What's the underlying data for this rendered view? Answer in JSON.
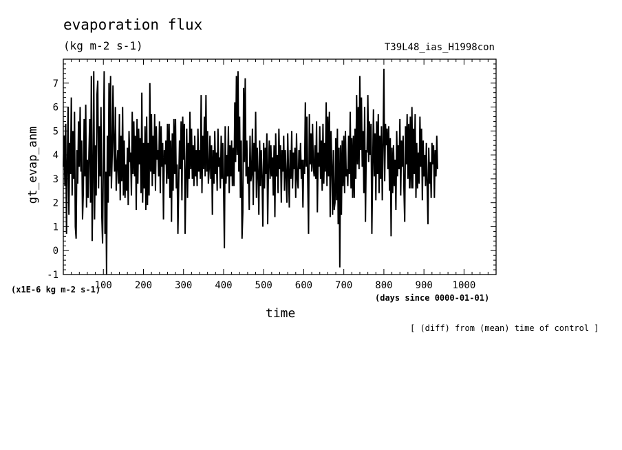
{
  "page": {
    "subtitle": "(kg m-2 s-1)",
    "run_label": "T39L48_ias_H1998con",
    "scale_note": "(x1E-6 kg m-2 s-1)",
    "x_units": "(days since 0000-01-01)",
    "footnote": "[ (diff) from (mean) time of control ]"
  },
  "chart_data": {
    "type": "line",
    "title": "evaporation flux",
    "xlabel": "time",
    "ylabel": "gt_evap_anm",
    "xlim": [
      0,
      1080
    ],
    "ylim": [
      -1,
      8
    ],
    "x_ticks": [
      100,
      200,
      300,
      400,
      500,
      600,
      700,
      800,
      900,
      1000
    ],
    "y_ticks": [
      -1,
      0,
      1,
      2,
      3,
      4,
      5,
      6,
      7
    ],
    "grid": false,
    "line_color": "#000000",
    "x_start": 0,
    "x_step": 2,
    "series": [
      {
        "values": [
          3.5,
          4.8,
          2.7,
          5.3,
          0.7,
          3.6,
          6.0,
          1.5,
          4.5,
          3.2,
          6.4,
          2.3,
          5.0,
          3.0,
          5.8,
          1.0,
          0.5,
          4.2,
          2.8,
          5.4,
          3.5,
          6.0,
          3.3,
          4.6,
          1.3,
          2.5,
          5.5,
          3.1,
          6.1,
          1.8,
          3.8,
          2.2,
          4.1,
          5.5,
          2.0,
          7.3,
          0.4,
          3.1,
          7.5,
          1.3,
          4.4,
          2.3,
          6.5,
          7.1,
          2.6,
          5.2,
          3.1,
          6.0,
          1.5,
          0.3,
          4.0,
          7.5,
          0.7,
          3.3,
          -1.0,
          4.8,
          2.0,
          7.0,
          3.1,
          7.3,
          2.6,
          4.0,
          6.9,
          4.5,
          3.3,
          6.0,
          2.5,
          3.5,
          4.2,
          2.8,
          5.7,
          2.1,
          4.8,
          2.9,
          6.0,
          2.3,
          4.6,
          2.2,
          3.6,
          2.5,
          4.3,
          1.9,
          5.0,
          3.7,
          4.1,
          2.3,
          5.8,
          3.2,
          5.4,
          3.1,
          4.8,
          1.7,
          5.5,
          2.8,
          5.1,
          3.6,
          4.7,
          2.4,
          6.6,
          2.0,
          4.5,
          2.6,
          5.2,
          1.7,
          5.6,
          1.9,
          4.5,
          2.3,
          7.0,
          3.3,
          5.7,
          2.7,
          4.8,
          3.2,
          5.7,
          2.5,
          5.2,
          3.8,
          4.2,
          3.1,
          5.4,
          2.4,
          5.2,
          3.5,
          4.5,
          1.3,
          4.2,
          3.6,
          4.6,
          2.8,
          5.3,
          3.0,
          5.3,
          2.2,
          4.6,
          1.2,
          4.9,
          2.5,
          5.5,
          3.2,
          5.5,
          2.6,
          3.6,
          0.7,
          2.8,
          4.6,
          3.4,
          5.4,
          2.1,
          5.6,
          3.8,
          5.3,
          0.7,
          3.1,
          5.1,
          2.2,
          4.5,
          3.0,
          5.8,
          3.4,
          5.1,
          3.0,
          4.4,
          2.7,
          4.8,
          3.1,
          4.2,
          2.7,
          5.1,
          3.3,
          4.2,
          3.0,
          6.5,
          2.4,
          4.8,
          3.4,
          5.6,
          3.1,
          6.5,
          3.3,
          5.0,
          2.8,
          3.4,
          4.8,
          3.0,
          4.4,
          1.5,
          4.2,
          2.8,
          5.0,
          3.2,
          4.1,
          2.5,
          5.1,
          3.5,
          3.9,
          2.6,
          4.8,
          3.0,
          4.5,
          2.7,
          0.1,
          5.2,
          2.8,
          4.0,
          3.1,
          5.2,
          2.4,
          4.4,
          3.1,
          4.6,
          2.7,
          4.3,
          2.7,
          6.2,
          3.7,
          7.3,
          4.0,
          7.5,
          3.3,
          5.6,
          2.2,
          4.6,
          0.5,
          1.6,
          6.8,
          3.7,
          7.2,
          3.1,
          4.6,
          2.8,
          3.5,
          1.7,
          4.8,
          2.9,
          3.2,
          5.1,
          1.9,
          4.5,
          3.3,
          5.8,
          2.2,
          4.3,
          3.2,
          1.5,
          4.6,
          2.7,
          4.2,
          3.0,
          1.0,
          4.5,
          2.6,
          4.3,
          3.2,
          4.9,
          1.1,
          3.5,
          4.6,
          3.0,
          4.4,
          3.1,
          3.9,
          2.3,
          4.4,
          1.4,
          4.9,
          3.1,
          4.0,
          2.4,
          5.1,
          3.4,
          4.4,
          2.0,
          4.2,
          3.3,
          4.8,
          2.5,
          4.2,
          3.1,
          2.0,
          4.9,
          3.3,
          1.8,
          4.2,
          3.0,
          5.0,
          2.6,
          4.1,
          3.4,
          4.3,
          2.2,
          4.9,
          3.0,
          2.6,
          4.2,
          3.4,
          4.5,
          3.0,
          3.8,
          1.8,
          3.8,
          3.2,
          6.2,
          3.5,
          5.6,
          2.9,
          0.7,
          5.7,
          3.6,
          4.9,
          3.3,
          5.3,
          3.5,
          3.1,
          4.4,
          3.0,
          5.4,
          1.6,
          4.1,
          3.5,
          5.2,
          3.0,
          4.6,
          2.5,
          5.3,
          2.8,
          4.5,
          3.3,
          6.2,
          2.7,
          5.6,
          3.1,
          5.8,
          1.4,
          5.0,
          3.6,
          1.5,
          4.2,
          1.7,
          2.0,
          4.7,
          2.1,
          5.1,
          1.1,
          4.3,
          -0.7,
          4.4,
          1.5,
          4.6,
          2.7,
          4.8,
          2.4,
          5.0,
          3.1,
          3.4,
          2.7,
          4.8,
          3.2,
          5.8,
          2.6,
          4.7,
          2.2,
          4.8,
          2.2,
          5.1,
          3.0,
          6.5,
          3.6,
          6.0,
          3.4,
          7.3,
          4.2,
          6.4,
          3.5,
          5.0,
          2.4,
          6.0,
          1.2,
          4.2,
          4.1,
          6.5,
          3.7,
          5.4,
          4.0,
          5.3,
          0.7,
          3.5,
          5.9,
          3.1,
          4.9,
          2.1,
          5.4,
          3.2,
          5.7,
          2.4,
          4.8,
          3.0,
          5.2,
          2.1,
          4.5,
          7.6,
          2.9,
          5.3,
          4.4,
          5.1,
          3.4,
          5.2,
          2.5,
          4.7,
          0.6,
          4.3,
          2.4,
          4.4,
          2.7,
          3.8,
          1.7,
          5.0,
          3.1,
          4.4,
          3.4,
          5.5,
          2.3,
          4.6,
          3.5,
          4.8,
          2.6,
          1.2,
          5.2,
          3.6,
          5.7,
          3.0,
          5.3,
          2.6,
          5.6,
          2.6,
          6.0,
          2.6,
          5.1,
          3.2,
          5.7,
          2.2,
          4.5,
          2.6,
          4.1,
          2.8,
          5.6,
          3.5,
          5.1,
          2.1,
          4.6,
          3.1,
          4.0,
          2.7,
          4.5,
          2.7,
          1.1,
          4.3,
          2.8,
          3.7,
          2.2,
          4.5,
          3.6,
          4.4,
          2.2,
          4.2,
          3.1,
          4.8,
          3.4
        ]
      }
    ]
  }
}
